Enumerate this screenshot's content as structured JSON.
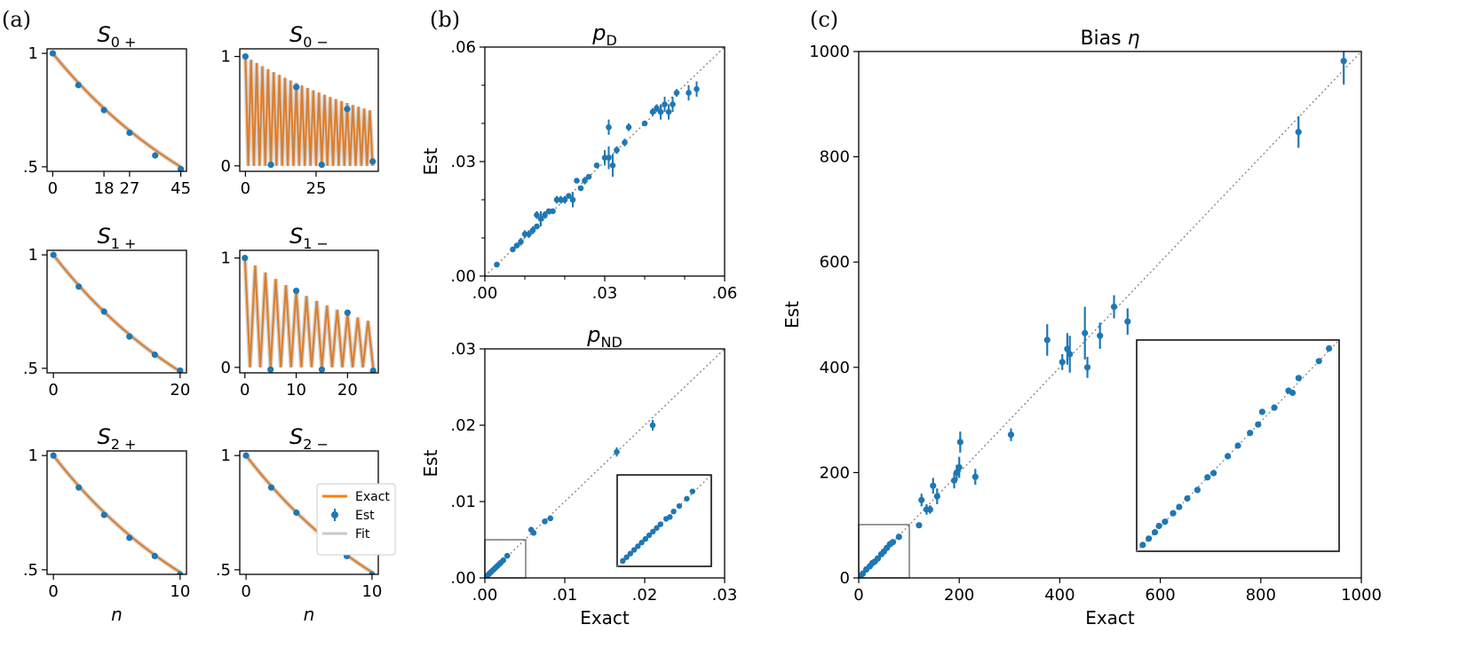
{
  "colors": {
    "exact": "#ff7f0e",
    "est": "#1f77b4",
    "fit": "#c8c8c8",
    "diag": "#888888",
    "frame": "#000000",
    "zoom": "#777777"
  },
  "panel_labels": [
    "(a)",
    "(b)",
    "(c)"
  ],
  "legend": {
    "exact": "Exact",
    "est": "Est",
    "fit": "Fit"
  },
  "chart_data": [
    {
      "id": "S0p",
      "type": "line",
      "title_main": "S",
      "title_sub": "0 +",
      "xlim": [
        -2,
        47
      ],
      "ylim": [
        0.48,
        1.02
      ],
      "xticks": [
        {
          "v": 0,
          "l": "0"
        },
        {
          "v": 18,
          "l": "18"
        },
        {
          "v": 27,
          "l": "27"
        },
        {
          "v": 45,
          "l": "45"
        }
      ],
      "yticks": [
        {
          "v": 0.5,
          "l": ".5"
        },
        {
          "v": 1,
          "l": "1"
        }
      ],
      "curve": {
        "kind": "decay",
        "rate": 0.9847,
        "n_max": 45
      },
      "est_x": [
        0,
        9,
        18,
        27,
        36,
        45
      ],
      "est_y": [
        1,
        0.86,
        0.75,
        0.65,
        0.55,
        0.49
      ],
      "xlabel": ""
    },
    {
      "id": "S0m",
      "type": "line",
      "title_main": "S",
      "title_sub": "0 −",
      "xlim": [
        -2,
        47
      ],
      "ylim": [
        -0.05,
        1.07
      ],
      "xticks": [
        {
          "v": 0,
          "l": "0"
        },
        {
          "v": 25,
          "l": "25"
        }
      ],
      "yticks": [
        {
          "v": 0,
          "l": "0"
        },
        {
          "v": 1,
          "l": "1"
        }
      ],
      "curve": {
        "kind": "osc",
        "rate": 0.9847,
        "n_max": 45
      },
      "est_x": [
        0,
        9,
        18,
        27,
        36,
        45
      ],
      "est_y": [
        1,
        0.01,
        0.72,
        0.01,
        0.52,
        0.04
      ],
      "xlabel": ""
    },
    {
      "id": "S1p",
      "type": "line",
      "title_main": "S",
      "title_sub": "1 +",
      "xlim": [
        -1,
        21
      ],
      "ylim": [
        0.48,
        1.02
      ],
      "xticks": [
        {
          "v": 0,
          "l": "0"
        },
        {
          "v": 20,
          "l": "20"
        }
      ],
      "yticks": [
        {
          "v": 0.5,
          "l": ".5"
        },
        {
          "v": 1,
          "l": "1"
        }
      ],
      "curve": {
        "kind": "decay",
        "rate": 0.9646,
        "n_max": 20
      },
      "est_x": [
        0,
        4,
        8,
        12,
        16,
        20
      ],
      "est_y": [
        1,
        0.86,
        0.75,
        0.64,
        0.56,
        0.49
      ],
      "xlabel": ""
    },
    {
      "id": "S1m",
      "type": "line",
      "title_main": "S",
      "title_sub": "1 −",
      "xlim": [
        -1,
        26
      ],
      "ylim": [
        -0.05,
        1.07
      ],
      "xticks": [
        {
          "v": 0,
          "l": "0"
        },
        {
          "v": 10,
          "l": "10"
        },
        {
          "v": 20,
          "l": "20"
        }
      ],
      "yticks": [
        {
          "v": 0,
          "l": "0"
        },
        {
          "v": 1,
          "l": "1"
        }
      ],
      "curve": {
        "kind": "osc",
        "rate": 0.965,
        "n_max": 25
      },
      "est_x": [
        0,
        5,
        10,
        15,
        20,
        25
      ],
      "est_y": [
        1,
        -0.02,
        0.7,
        -0.02,
        0.5,
        -0.03
      ],
      "xlabel": ""
    },
    {
      "id": "S2p",
      "type": "line",
      "title_main": "S",
      "title_sub": "2 +",
      "xlim": [
        -0.5,
        10.5
      ],
      "ylim": [
        0.48,
        1.02
      ],
      "xticks": [
        {
          "v": 0,
          "l": "0"
        },
        {
          "v": 10,
          "l": "10"
        }
      ],
      "yticks": [
        {
          "v": 0.5,
          "l": ".5"
        },
        {
          "v": 1,
          "l": "1"
        }
      ],
      "curve": {
        "kind": "decay",
        "rate": 0.931,
        "n_max": 10
      },
      "est_x": [
        0,
        2,
        4,
        6,
        8,
        10
      ],
      "est_y": [
        1,
        0.86,
        0.74,
        0.64,
        0.56,
        0.48
      ],
      "xlabel": "n"
    },
    {
      "id": "S2m",
      "type": "line",
      "title_main": "S",
      "title_sub": "2 −",
      "xlim": [
        -0.5,
        10.5
      ],
      "ylim": [
        0.48,
        1.02
      ],
      "xticks": [
        {
          "v": 0,
          "l": "0"
        },
        {
          "v": 10,
          "l": "10"
        }
      ],
      "yticks": [
        {
          "v": 0.5,
          "l": ".5"
        },
        {
          "v": 1,
          "l": "1"
        }
      ],
      "curve": {
        "kind": "decay",
        "rate": 0.931,
        "n_max": 10
      },
      "est_x": [
        0,
        2,
        4,
        6,
        8,
        10
      ],
      "est_y": [
        1,
        0.86,
        0.75,
        0.65,
        0.56,
        0.48
      ],
      "xlabel": "n",
      "legend": true
    },
    {
      "id": "pD",
      "type": "scatter",
      "title_main": "p",
      "title_sub": "D",
      "xlim": [
        0,
        0.06
      ],
      "ylim": [
        0,
        0.06
      ],
      "xticks": [
        {
          "v": 0,
          "l": ".00"
        },
        {
          "v": 0.03,
          "l": ".03"
        },
        {
          "v": 0.06,
          "l": ".06"
        }
      ],
      "yticks": [
        {
          "v": 0,
          "l": ".00"
        },
        {
          "v": 0.03,
          "l": ".03"
        },
        {
          "v": 0.06,
          "l": ".06"
        }
      ],
      "xminor": [
        0.01,
        0.02,
        0.04,
        0.05
      ],
      "yminor": [
        0.01,
        0.02,
        0.04,
        0.05
      ],
      "xlabel": "",
      "ylabel": "Est",
      "points": [
        [
          0.003,
          0.003,
          0
        ],
        [
          0.007,
          0.007,
          0
        ],
        [
          0.008,
          0.008,
          0
        ],
        [
          0.009,
          0.009,
          0.001
        ],
        [
          0.01,
          0.011,
          0.001
        ],
        [
          0.011,
          0.011,
          0.001
        ],
        [
          0.012,
          0.012,
          0.001
        ],
        [
          0.013,
          0.013,
          0
        ],
        [
          0.013,
          0.016,
          0.001
        ],
        [
          0.014,
          0.015,
          0.002
        ],
        [
          0.015,
          0.016,
          0.001
        ],
        [
          0.016,
          0.017,
          0
        ],
        [
          0.017,
          0.017,
          0
        ],
        [
          0.018,
          0.02,
          0.001
        ],
        [
          0.019,
          0.02,
          0.001
        ],
        [
          0.02,
          0.02,
          0.001
        ],
        [
          0.021,
          0.021,
          0
        ],
        [
          0.022,
          0.02,
          0.002
        ],
        [
          0.023,
          0.025,
          0
        ],
        [
          0.024,
          0.023,
          0
        ],
        [
          0.025,
          0.025,
          0.001
        ],
        [
          0.026,
          0.026,
          0
        ],
        [
          0.028,
          0.029,
          0
        ],
        [
          0.03,
          0.031,
          0.002
        ],
        [
          0.031,
          0.039,
          0.002
        ],
        [
          0.031,
          0.031,
          0.003
        ],
        [
          0.032,
          0.029,
          0.003
        ],
        [
          0.033,
          0.033,
          0.001
        ],
        [
          0.035,
          0.035,
          0.001
        ],
        [
          0.036,
          0.039,
          0.001
        ],
        [
          0.04,
          0.04,
          0
        ],
        [
          0.042,
          0.043,
          0.001
        ],
        [
          0.043,
          0.044,
          0.001
        ],
        [
          0.044,
          0.043,
          0.002
        ],
        [
          0.045,
          0.045,
          0.002
        ],
        [
          0.046,
          0.043,
          0.002
        ],
        [
          0.047,
          0.045,
          0.002
        ],
        [
          0.048,
          0.048,
          0.001
        ],
        [
          0.051,
          0.048,
          0.002
        ],
        [
          0.053,
          0.049,
          0.002
        ]
      ]
    },
    {
      "id": "pND",
      "type": "scatter",
      "title_main": "p",
      "title_sub": "ND",
      "xlim": [
        0,
        0.03
      ],
      "ylim": [
        0,
        0.03
      ],
      "xticks": [
        {
          "v": 0,
          "l": ".00"
        },
        {
          "v": 0.01,
          "l": ".01"
        },
        {
          "v": 0.02,
          "l": ".02"
        },
        {
          "v": 0.03,
          "l": ".03"
        }
      ],
      "yticks": [
        {
          "v": 0,
          "l": ".00"
        },
        {
          "v": 0.01,
          "l": ".01"
        },
        {
          "v": 0.02,
          "l": ".02"
        },
        {
          "v": 0.03,
          "l": ".03"
        }
      ],
      "xlabel": "Exact",
      "ylabel": "Est",
      "points": [
        [
          0.0002,
          0.0002,
          0
        ],
        [
          0.0004,
          0.0004,
          0
        ],
        [
          0.0006,
          0.0006,
          0
        ],
        [
          0.0008,
          0.0008,
          0
        ],
        [
          0.001,
          0.001,
          0
        ],
        [
          0.0012,
          0.0012,
          0
        ],
        [
          0.0014,
          0.0014,
          0
        ],
        [
          0.0016,
          0.0016,
          0
        ],
        [
          0.0018,
          0.0018,
          0
        ],
        [
          0.002,
          0.002,
          0
        ],
        [
          0.0023,
          0.0023,
          0
        ],
        [
          0.0028,
          0.0029,
          0
        ],
        [
          0.0058,
          0.0063,
          0.0004
        ],
        [
          0.0061,
          0.0059,
          0
        ],
        [
          0.0075,
          0.0074,
          0
        ],
        [
          0.0082,
          0.0078,
          0
        ],
        [
          0.0165,
          0.0165,
          0.0006
        ],
        [
          0.021,
          0.02,
          0.0007
        ]
      ],
      "zoom": {
        "range": [
          0,
          0.005
        ]
      },
      "inset_points": [
        [
          0.0003,
          0.0003
        ],
        [
          0.0005,
          0.0005
        ],
        [
          0.0007,
          0.0007
        ],
        [
          0.0009,
          0.0009
        ],
        [
          0.0011,
          0.0011
        ],
        [
          0.0013,
          0.0013
        ],
        [
          0.0015,
          0.0015
        ],
        [
          0.0017,
          0.0017
        ],
        [
          0.0019,
          0.0019
        ],
        [
          0.0021,
          0.0021
        ],
        [
          0.0023,
          0.0023
        ],
        [
          0.0026,
          0.0026
        ],
        [
          0.0028,
          0.0027
        ],
        [
          0.003,
          0.003
        ],
        [
          0.0033,
          0.0033
        ],
        [
          0.0037,
          0.0037
        ],
        [
          0.004,
          0.0041
        ]
      ]
    },
    {
      "id": "bias",
      "type": "scatter",
      "title_main": "Bias ",
      "title_italic": "η",
      "xlim": [
        0,
        1000
      ],
      "ylim": [
        0,
        1000
      ],
      "xticks": [
        {
          "v": 0,
          "l": "0"
        },
        {
          "v": 200,
          "l": "200"
        },
        {
          "v": 400,
          "l": "400"
        },
        {
          "v": 600,
          "l": "600"
        },
        {
          "v": 800,
          "l": "800"
        },
        {
          "v": 1000,
          "l": "1000"
        }
      ],
      "yticks": [
        {
          "v": 0,
          "l": "0"
        },
        {
          "v": 200,
          "l": "200"
        },
        {
          "v": 400,
          "l": "400"
        },
        {
          "v": 600,
          "l": "600"
        },
        {
          "v": 800,
          "l": "800"
        },
        {
          "v": 1000,
          "l": "1000"
        }
      ],
      "xlabel": "Exact",
      "ylabel": "Est",
      "points": [
        [
          3,
          3,
          0
        ],
        [
          8,
          8,
          0
        ],
        [
          15,
          16,
          0
        ],
        [
          22,
          22,
          0
        ],
        [
          27,
          28,
          0
        ],
        [
          32,
          31,
          0
        ],
        [
          38,
          37,
          0
        ],
        [
          45,
          45,
          0
        ],
        [
          50,
          50,
          0
        ],
        [
          56,
          57,
          0
        ],
        [
          62,
          64,
          0
        ],
        [
          68,
          68,
          0
        ],
        [
          80,
          78,
          0
        ],
        [
          120,
          100,
          5
        ],
        [
          125,
          148,
          12
        ],
        [
          135,
          130,
          10
        ],
        [
          142,
          130,
          8
        ],
        [
          148,
          175,
          15
        ],
        [
          156,
          155,
          15
        ],
        [
          190,
          185,
          15
        ],
        [
          195,
          200,
          15
        ],
        [
          200,
          210,
          20
        ],
        [
          202,
          258,
          20
        ],
        [
          232,
          192,
          15
        ],
        [
          303,
          272,
          12
        ],
        [
          375,
          452,
          30
        ],
        [
          405,
          410,
          15
        ],
        [
          415,
          435,
          30
        ],
        [
          420,
          425,
          35
        ],
        [
          450,
          465,
          50
        ],
        [
          455,
          400,
          20
        ],
        [
          480,
          460,
          25
        ],
        [
          508,
          515,
          22
        ],
        [
          535,
          487,
          25
        ],
        [
          875,
          847,
          30
        ],
        [
          965,
          982,
          45
        ]
      ],
      "zoom": {
        "range": [
          0,
          100
        ]
      },
      "inset_points": [
        [
          3,
          3
        ],
        [
          6,
          6
        ],
        [
          9,
          9
        ],
        [
          11,
          12
        ],
        [
          14,
          14
        ],
        [
          18,
          18
        ],
        [
          21,
          21
        ],
        [
          25,
          25
        ],
        [
          30,
          29
        ],
        [
          35,
          35
        ],
        [
          38,
          37
        ],
        [
          45,
          45
        ],
        [
          50,
          50
        ],
        [
          56,
          56
        ],
        [
          60,
          60
        ],
        [
          62,
          66
        ],
        [
          68,
          68
        ],
        [
          75,
          76
        ],
        [
          77,
          75
        ],
        [
          80,
          82
        ],
        [
          90,
          90
        ],
        [
          95,
          96
        ]
      ]
    }
  ]
}
